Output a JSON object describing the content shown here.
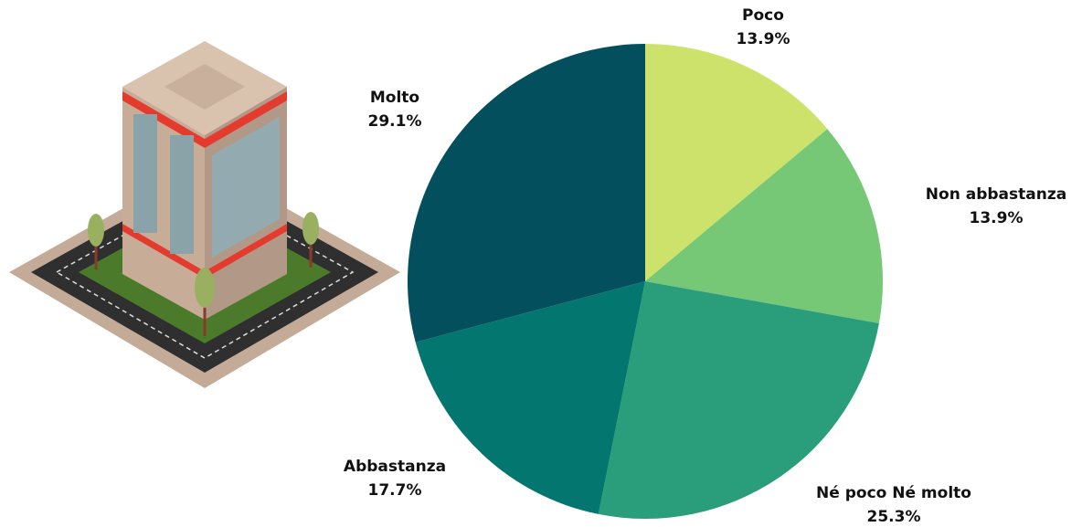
{
  "chart_data": {
    "type": "pie",
    "categories": [
      "Poco",
      "Non abbastanza",
      "Né poco Né molto",
      "Abbastanza",
      "Molto"
    ],
    "values": [
      13.9,
      13.9,
      25.3,
      17.7,
      29.1
    ],
    "value_labels": [
      "13.9%",
      "13.9%",
      "25.3%",
      "17.7%",
      "29.1%"
    ],
    "colors": [
      "#cde26a",
      "#76c776",
      "#2a9d7a",
      "#037670",
      "#034f5e"
    ]
  }
}
